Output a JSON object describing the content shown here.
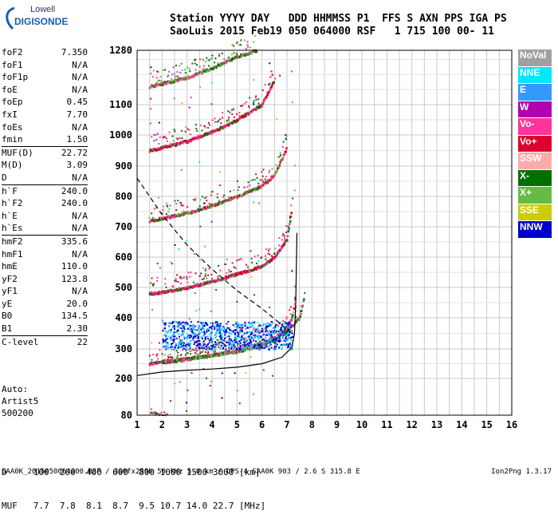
{
  "logo": {
    "line1": "Lowell",
    "line2": "DIGISONDE"
  },
  "header": {
    "row1": "Station YYYY DAY   DDD HHMMSS P1  FFS S AXN PPS IGA PS",
    "row2": "SaoLuis 2015 Feb19 050 064000 RSF   1 715 100 00- 11"
  },
  "params": [
    {
      "name": "foF2",
      "value": "7.350"
    },
    {
      "name": "foF1",
      "value": "N/A"
    },
    {
      "name": "foF1p",
      "value": "N/A"
    },
    {
      "name": "foE",
      "value": "N/A"
    },
    {
      "name": "foEp",
      "value": "0.45"
    },
    {
      "name": "fxI",
      "value": "7.70"
    },
    {
      "name": "foEs",
      "value": "N/A"
    },
    {
      "name": "fmin",
      "value": "1.50"
    },
    {
      "name": "MUF(D)",
      "value": "22.72",
      "sep": true
    },
    {
      "name": "M(D)",
      "value": "3.09"
    },
    {
      "name": "D",
      "value": "N/A"
    },
    {
      "name": "h`F",
      "value": "240.0",
      "sep": true
    },
    {
      "name": "h`F2",
      "value": "240.0"
    },
    {
      "name": "h`E",
      "value": "N/A"
    },
    {
      "name": "h`Es",
      "value": "N/A"
    },
    {
      "name": "hmF2",
      "value": "335.6",
      "sep": true
    },
    {
      "name": "hmF1",
      "value": "N/A"
    },
    {
      "name": "hmE",
      "value": "110.0"
    },
    {
      "name": "yF2",
      "value": "123.8"
    },
    {
      "name": "yF1",
      "value": "N/A"
    },
    {
      "name": "yE",
      "value": "20.0"
    },
    {
      "name": "B0",
      "value": "134.5"
    },
    {
      "name": "B1",
      "value": "2.30"
    },
    {
      "name": "C-level",
      "value": "22",
      "sep": true
    }
  ],
  "auto": {
    "l1": "Auto:",
    "l2": "Artist5",
    "l3": "500200"
  },
  "muf_table": {
    "d_row": "D     100  200  400  600  800 1000 1500 3000 [km]",
    "muf_row": "MUF   7.7  7.8  8.1  8.7  9.5 10.7 14.0 22.7 [MHz]"
  },
  "footer": "SAA0K_2015050064000.RSF / 300fx256h 50 kHz 5.0 km / DPS-4 SAA0K 903 / 2.6 S 315.8 E",
  "version": "Ion2Png 1.3.17",
  "legend": [
    {
      "label": "NoVal",
      "color": "#a0a0a0"
    },
    {
      "label": "NNE",
      "color": "#00e8ff"
    },
    {
      "label": "E",
      "color": "#3399ff"
    },
    {
      "label": "W",
      "color": "#b000b0"
    },
    {
      "label": "Vo-",
      "color": "#ff3399"
    },
    {
      "label": "Vo+",
      "color": "#e00030"
    },
    {
      "label": "SSW",
      "color": "#ffaaaa"
    },
    {
      "label": "X-",
      "color": "#007000"
    },
    {
      "label": "X+",
      "color": "#66bb44"
    },
    {
      "label": "SSE",
      "color": "#cccc00"
    },
    {
      "label": "NNW",
      "color": "#0000cc"
    }
  ],
  "chart_data": {
    "type": "scatter",
    "xlabel": "",
    "ylabel": "",
    "xlim": [
      1,
      16
    ],
    "x_ticks": [
      "1",
      "2",
      "3",
      "4",
      "5",
      "6",
      "7",
      "8",
      "9",
      "10",
      "11",
      "12",
      "13",
      "14",
      "15",
      "16"
    ],
    "y_ticks": [
      "80",
      "200",
      "300",
      "400",
      "500",
      "600",
      "700",
      "800",
      "900",
      "1000",
      "1100",
      "1280"
    ],
    "y_tick_values": [
      80,
      200,
      300,
      400,
      500,
      600,
      700,
      800,
      900,
      1000,
      1100,
      1280
    ],
    "ylim": [
      80,
      1280
    ],
    "y_scale": "nonlinear (ionogram virtual height)",
    "grid": true,
    "series": [
      {
        "role": "o-trace hop1",
        "x": [
          1.5,
          2,
          3,
          4,
          5,
          6,
          6.5,
          7,
          7.2,
          7.35
        ],
        "y": [
          250,
          258,
          268,
          280,
          295,
          318,
          335,
          365,
          400,
          470
        ]
      },
      {
        "role": "x-trace hop1",
        "x": [
          2,
          3,
          4,
          5,
          6,
          6.5,
          7,
          7.5,
          7.7
        ],
        "y": [
          255,
          265,
          278,
          292,
          312,
          330,
          358,
          400,
          470
        ]
      },
      {
        "role": "hop2",
        "x": [
          1.5,
          2,
          3,
          4,
          5,
          6,
          6.5,
          7,
          7.2
        ],
        "y": [
          480,
          485,
          500,
          520,
          545,
          570,
          600,
          660,
          760
        ]
      },
      {
        "role": "hop3",
        "x": [
          1.5,
          2,
          3,
          4,
          5,
          6,
          6.5,
          7
        ],
        "y": [
          720,
          728,
          745,
          770,
          800,
          835,
          870,
          960
        ]
      },
      {
        "role": "hop4",
        "x": [
          1.5,
          2,
          3,
          4,
          5,
          6,
          6.5
        ],
        "y": [
          950,
          960,
          980,
          1010,
          1050,
          1100,
          1180
        ]
      },
      {
        "role": "hop5",
        "x": [
          1.5,
          2,
          3,
          4,
          5,
          5.8
        ],
        "y": [
          1160,
          1170,
          1190,
          1220,
          1260,
          1280
        ]
      },
      {
        "role": "profile",
        "x": [
          1,
          2,
          3,
          4,
          5,
          6,
          6.8,
          7.2,
          7.3,
          7.35,
          7.4
        ],
        "y": [
          210,
          222,
          228,
          232,
          238,
          250,
          272,
          305,
          350,
          450,
          680
        ]
      },
      {
        "role": "MUF curve",
        "x": [
          1,
          2,
          3,
          4,
          5,
          6,
          6.6,
          7.2
        ],
        "y": [
          860,
          740,
          640,
          560,
          490,
          430,
          390,
          350
        ]
      }
    ]
  }
}
